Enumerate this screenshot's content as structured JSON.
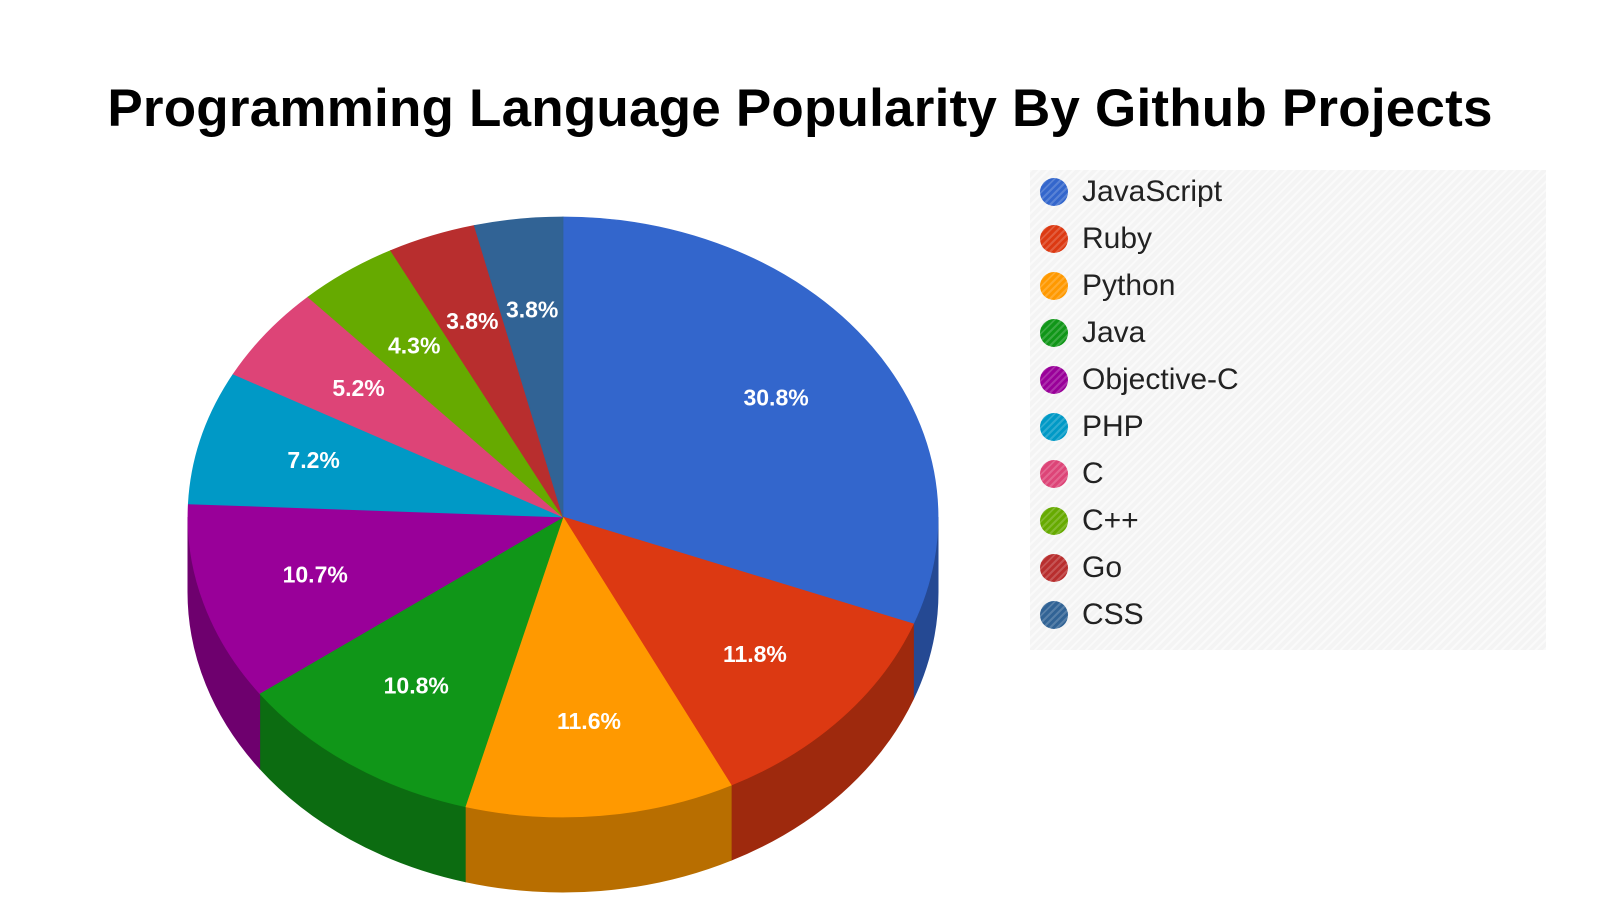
{
  "chart_data": {
    "type": "pie",
    "title": "Programming Language Popularity By Github Projects",
    "categories": [
      "JavaScript",
      "Ruby",
      "Python",
      "Java",
      "Objective-C",
      "PHP",
      "C",
      "C++",
      "Go",
      "CSS"
    ],
    "values": [
      30.8,
      11.8,
      11.6,
      10.8,
      10.7,
      7.2,
      5.2,
      4.3,
      3.8,
      3.8
    ],
    "labels": [
      "30.8%",
      "11.8%",
      "11.6%",
      "10.8%",
      "10.7%",
      "7.2%",
      "5.2%",
      "4.3%",
      "3.8%",
      "3.8%"
    ],
    "colors": [
      "#3366cc",
      "#dc3912",
      "#ff9900",
      "#109618",
      "#990099",
      "#0099c6",
      "#dd4477",
      "#66aa00",
      "#b82e2e",
      "#316395"
    ],
    "legend_position": "right",
    "style": "3d"
  }
}
